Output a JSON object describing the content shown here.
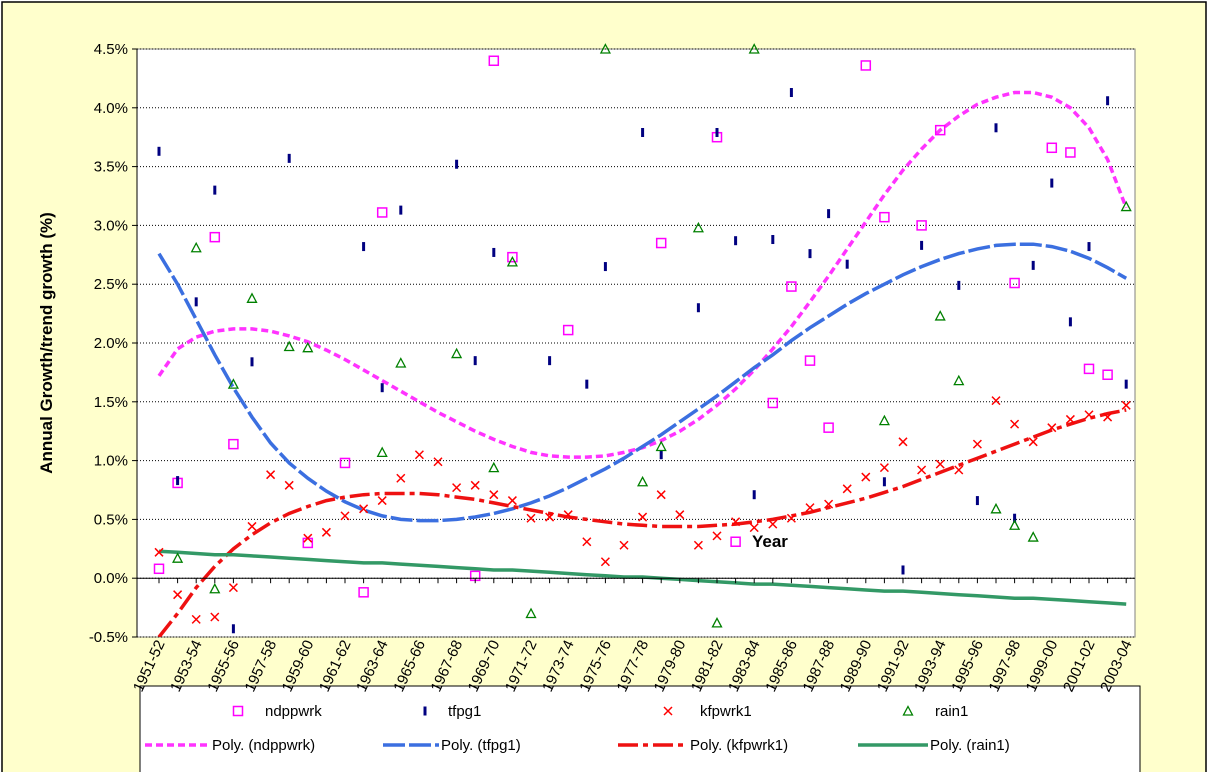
{
  "chart_data": {
    "type": "scatter",
    "y_title": "Annual Growth/trend growth (%)",
    "annotation": "Year",
    "grid": true,
    "legend": "bottom",
    "ylim": [
      -0.5,
      4.5
    ],
    "yticks": [
      {
        "value": -0.5,
        "label": "-0.5%"
      },
      {
        "value": 0,
        "label": "0.0%"
      },
      {
        "value": 0.5,
        "label": "0.5%"
      },
      {
        "value": 1,
        "label": "1.0%"
      },
      {
        "value": 1.5,
        "label": "1.5%"
      },
      {
        "value": 2,
        "label": "2.0%"
      },
      {
        "value": 2.5,
        "label": "2.5%"
      },
      {
        "value": 3,
        "label": "3.0%"
      },
      {
        "value": 3.5,
        "label": "3.5%"
      },
      {
        "value": 4,
        "label": "4.0%"
      },
      {
        "value": 4.5,
        "label": "4.5%"
      }
    ],
    "categories": [
      "1951-52",
      null,
      "1953-54",
      null,
      "1955-56",
      null,
      "1957-58",
      null,
      "1959-60",
      null,
      "1961-62",
      null,
      "1963-64",
      null,
      "1965-66",
      null,
      "1967-68",
      null,
      "1969-70",
      null,
      "1971-72",
      null,
      "1973-74",
      null,
      "1975-76",
      null,
      "1977-78",
      null,
      "1979-80",
      null,
      "1981-82",
      null,
      "1983-84",
      null,
      "1985-86",
      null,
      "1987-88",
      null,
      "1989-90",
      null,
      "1991-92",
      null,
      "1993-94",
      null,
      "1995-96",
      null,
      "1997-98",
      null,
      "1999-00",
      null,
      "2001-02",
      null,
      "2003-04"
    ],
    "series": [
      {
        "name": "ndppwrk",
        "color": "#ff00ff",
        "marker": "square",
        "values": [
          0.08,
          0.81,
          null,
          2.9,
          1.14,
          null,
          null,
          null,
          0.3,
          null,
          0.98,
          -0.12,
          3.11,
          null,
          null,
          null,
          null,
          0.02,
          4.4,
          2.73,
          null,
          null,
          2.11,
          null,
          null,
          null,
          null,
          2.85,
          null,
          null,
          3.75,
          0.31,
          null,
          1.49,
          2.48,
          1.85,
          1.28,
          null,
          4.36,
          3.07,
          null,
          3.0,
          3.81,
          null,
          null,
          null,
          2.51,
          null,
          3.66,
          3.62,
          1.78,
          1.73,
          null
        ]
      },
      {
        "name": "tfpg1",
        "color": "#000080",
        "marker": "dash",
        "values": [
          3.63,
          0.83,
          2.35,
          3.3,
          -0.43,
          1.84,
          null,
          3.57,
          null,
          null,
          null,
          2.82,
          1.62,
          3.13,
          null,
          null,
          3.52,
          1.85,
          2.77,
          null,
          null,
          1.85,
          null,
          1.65,
          2.65,
          null,
          3.79,
          1.05,
          null,
          2.3,
          3.79,
          2.87,
          0.71,
          2.88,
          4.13,
          2.76,
          3.1,
          2.67,
          null,
          0.82,
          0.07,
          2.83,
          null,
          2.49,
          0.66,
          3.83,
          0.51,
          2.66,
          3.36,
          2.18,
          2.82,
          4.06,
          1.65
        ]
      },
      {
        "name": "kfpwrk1",
        "color": "#ff0000",
        "marker": "x",
        "values": [
          0.22,
          -0.14,
          -0.35,
          -0.33,
          -0.08,
          0.44,
          0.88,
          0.79,
          0.34,
          0.39,
          0.53,
          0.59,
          0.66,
          0.85,
          1.05,
          0.99,
          0.77,
          0.79,
          0.71,
          0.66,
          0.51,
          0.52,
          0.54,
          0.31,
          0.14,
          0.28,
          0.52,
          0.71,
          0.54,
          0.28,
          0.36,
          0.48,
          0.43,
          0.46,
          0.51,
          0.6,
          0.63,
          0.76,
          0.86,
          0.94,
          1.16,
          0.92,
          0.97,
          0.92,
          1.14,
          1.51,
          1.31,
          1.16,
          1.28,
          1.35,
          1.39,
          1.37,
          1.47
        ]
      },
      {
        "name": "rain1",
        "color": "#008000",
        "marker": "triangle",
        "values": [
          null,
          0.17,
          2.81,
          -0.09,
          1.65,
          2.38,
          null,
          1.97,
          1.96,
          null,
          null,
          null,
          1.07,
          1.83,
          null,
          null,
          1.91,
          null,
          0.94,
          2.69,
          -0.3,
          null,
          null,
          null,
          4.5,
          null,
          0.82,
          1.12,
          null,
          2.98,
          -0.38,
          null,
          4.5,
          null,
          null,
          null,
          null,
          null,
          null,
          1.34,
          null,
          null,
          2.23,
          1.68,
          null,
          0.59,
          0.45,
          0.35,
          null,
          null,
          null,
          null,
          3.16
        ]
      },
      {
        "name": "Poly. (ndppwrk)",
        "color": "#ff33ff",
        "line_style": "dotted",
        "values": [
          1.72,
          1.95,
          2.05,
          2.1,
          2.12,
          2.12,
          2.1,
          2.06,
          2.01,
          1.94,
          1.86,
          1.77,
          1.68,
          1.59,
          1.5,
          1.41,
          1.33,
          1.25,
          1.18,
          1.12,
          1.07,
          1.04,
          1.03,
          1.03,
          1.04,
          1.07,
          1.11,
          1.17,
          1.25,
          1.35,
          1.47,
          1.61,
          1.77,
          1.95,
          2.14,
          2.35,
          2.57,
          2.8,
          3.03,
          3.26,
          3.47,
          3.65,
          3.81,
          3.93,
          4.03,
          4.09,
          4.13,
          4.13,
          4.09,
          4.0,
          3.83,
          3.56,
          3.15
        ]
      },
      {
        "name": "Poly. (tfpg1)",
        "color": "#3b6fe0",
        "line_style": "dashed",
        "values": [
          2.76,
          2.5,
          2.2,
          1.9,
          1.62,
          1.37,
          1.15,
          0.98,
          0.85,
          0.74,
          0.65,
          0.58,
          0.53,
          0.5,
          0.49,
          0.49,
          0.5,
          0.52,
          0.55,
          0.59,
          0.64,
          0.7,
          0.77,
          0.85,
          0.93,
          1.02,
          1.12,
          1.22,
          1.33,
          1.44,
          1.55,
          1.67,
          1.79,
          1.9,
          2.02,
          2.13,
          2.23,
          2.33,
          2.42,
          2.5,
          2.58,
          2.65,
          2.71,
          2.76,
          2.8,
          2.83,
          2.84,
          2.84,
          2.82,
          2.78,
          2.72,
          2.64,
          2.55
        ]
      },
      {
        "name": "Poly. (kfpwrk1)",
        "color": "#ee1111",
        "line_style": "dashdot",
        "values": [
          -0.5,
          -0.3,
          -0.08,
          0.1,
          0.25,
          0.37,
          0.47,
          0.55,
          0.61,
          0.66,
          0.69,
          0.71,
          0.72,
          0.72,
          0.72,
          0.71,
          0.69,
          0.67,
          0.64,
          0.61,
          0.58,
          0.55,
          0.52,
          0.5,
          0.48,
          0.46,
          0.45,
          0.44,
          0.44,
          0.44,
          0.45,
          0.46,
          0.48,
          0.5,
          0.53,
          0.56,
          0.6,
          0.64,
          0.68,
          0.73,
          0.78,
          0.84,
          0.9,
          0.96,
          1.02,
          1.08,
          1.14,
          1.2,
          1.26,
          1.31,
          1.36,
          1.4,
          1.43
        ]
      },
      {
        "name": "Poly. (rain1)",
        "color": "#339966",
        "line_style": "solid",
        "values": [
          0.23,
          0.22,
          0.21,
          0.2,
          0.2,
          0.19,
          0.18,
          0.17,
          0.16,
          0.15,
          0.14,
          0.13,
          0.13,
          0.12,
          0.11,
          0.1,
          0.09,
          0.08,
          0.07,
          0.07,
          0.06,
          0.05,
          0.04,
          0.03,
          0.02,
          0.01,
          0.01,
          0.0,
          -0.01,
          -0.02,
          -0.03,
          -0.04,
          -0.05,
          -0.05,
          -0.06,
          -0.07,
          -0.08,
          -0.09,
          -0.1,
          -0.11,
          -0.11,
          -0.12,
          -0.13,
          -0.14,
          -0.15,
          -0.16,
          -0.17,
          -0.17,
          -0.18,
          -0.19,
          -0.2,
          -0.21,
          -0.22
        ]
      }
    ]
  }
}
